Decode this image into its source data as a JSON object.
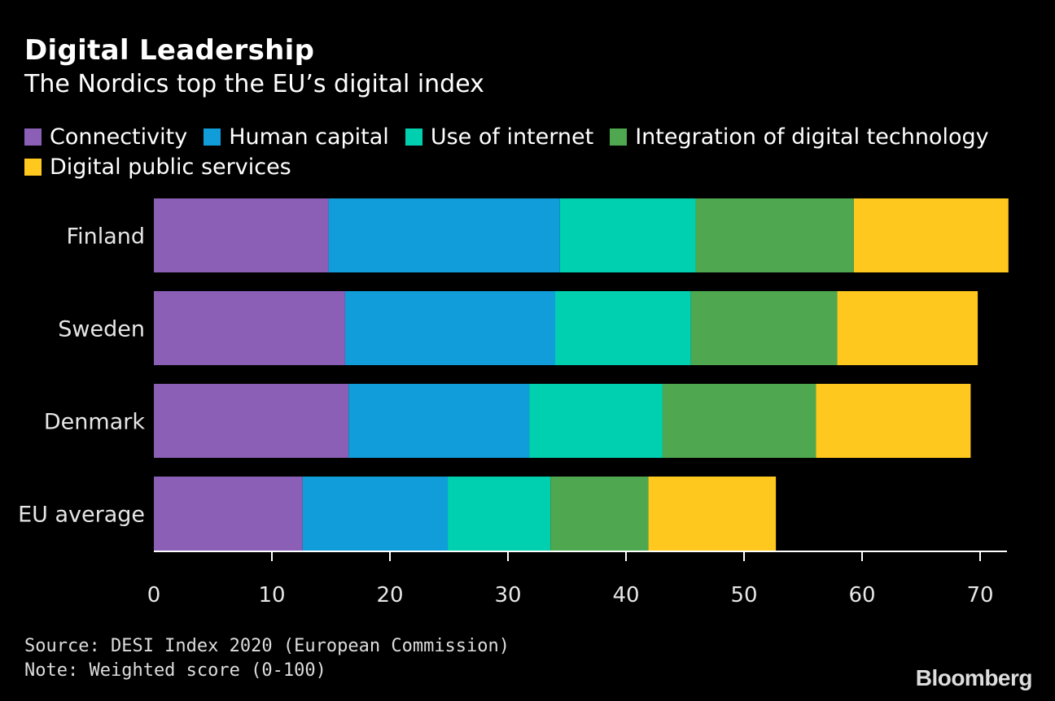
{
  "header": {
    "title": "Digital Leadership",
    "subtitle": "The Nordics top the EU’s digital index"
  },
  "legend": {
    "items": [
      {
        "label": "Connectivity",
        "color": "#8a5fb5"
      },
      {
        "label": "Human capital",
        "color": "#109dd9"
      },
      {
        "label": "Use of internet",
        "color": "#00d0b0"
      },
      {
        "label": "Integration of digital technology",
        "color": "#4fa84f"
      },
      {
        "label": "Digital public services",
        "color": "#ffc81e"
      }
    ]
  },
  "chart_data": {
    "type": "bar",
    "orientation": "horizontal",
    "stacked": true,
    "categories": [
      "Finland",
      "Sweden",
      "Denmark",
      "EU average"
    ],
    "series": [
      {
        "name": "Connectivity",
        "color": "#8a5fb5",
        "values": [
          14.8,
          16.2,
          16.5,
          12.6
        ]
      },
      {
        "name": "Human capital",
        "color": "#109dd9",
        "values": [
          19.6,
          17.8,
          15.3,
          12.3
        ]
      },
      {
        "name": "Use of internet",
        "color": "#00d0b0",
        "values": [
          11.5,
          11.5,
          11.3,
          8.7
        ]
      },
      {
        "name": "Integration of digital technology",
        "color": "#4fa84f",
        "values": [
          13.4,
          12.4,
          13.0,
          8.3
        ]
      },
      {
        "name": "Digital public services",
        "color": "#ffc81e",
        "values": [
          13.1,
          11.9,
          13.1,
          10.8
        ]
      }
    ],
    "xlim": [
      0,
      72
    ],
    "xticks": [
      0,
      10,
      20,
      30,
      40,
      50,
      60,
      70
    ],
    "grid": false,
    "legend_position": "top"
  },
  "footer": {
    "source": "Source: DESI Index 2020 (European Commission)",
    "note": "Note: Weighted score (0-100)",
    "brand": "Bloomberg"
  }
}
